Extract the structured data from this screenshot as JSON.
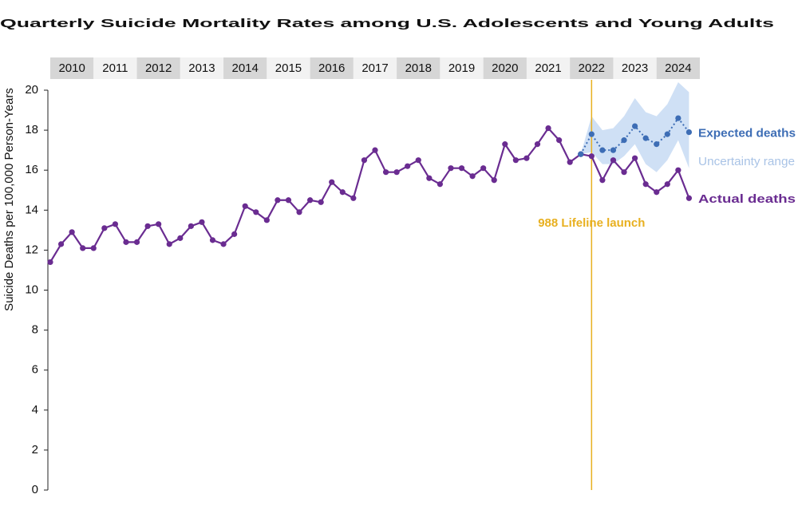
{
  "chart_data": {
    "type": "line",
    "title": "Quarterly Suicide Mortality Rates among U.S. Adolescents and Young Adults",
    "ylabel": "Suicide Deaths per 100,000 Person-Years",
    "years": [
      2010,
      2011,
      2012,
      2013,
      2014,
      2015,
      2016,
      2017,
      2018,
      2019,
      2020,
      2021,
      2022,
      2023,
      2024
    ],
    "band_colors": [
      "#d6d6d6",
      "#f2f2f2"
    ],
    "x": [
      2010,
      2010.25,
      2010.5,
      2010.75,
      2011,
      2011.25,
      2011.5,
      2011.75,
      2012,
      2012.25,
      2012.5,
      2012.75,
      2013,
      2013.25,
      2013.5,
      2013.75,
      2014,
      2014.25,
      2014.5,
      2014.75,
      2015,
      2015.25,
      2015.5,
      2015.75,
      2016,
      2016.25,
      2016.5,
      2016.75,
      2017,
      2017.25,
      2017.5,
      2017.75,
      2018,
      2018.25,
      2018.5,
      2018.75,
      2019,
      2019.25,
      2019.5,
      2019.75,
      2020,
      2020.25,
      2020.5,
      2020.75,
      2021,
      2021.25,
      2021.5,
      2021.75,
      2022,
      2022.25,
      2022.5,
      2022.75,
      2023,
      2023.25,
      2023.5,
      2023.75,
      2024,
      2024.25,
      2024.5,
      2024.75
    ],
    "xlim": [
      2010,
      2025
    ],
    "ylim": [
      0,
      20
    ],
    "yticks": [
      0,
      2,
      4,
      6,
      8,
      10,
      12,
      14,
      16,
      18,
      20
    ],
    "series": [
      {
        "name": "Actual deaths",
        "color": "#6a2c91",
        "style": "solid",
        "values": [
          11.4,
          12.3,
          12.9,
          12.1,
          12.1,
          13.1,
          13.3,
          12.4,
          12.4,
          13.2,
          13.3,
          12.3,
          12.6,
          13.2,
          13.4,
          12.5,
          12.3,
          12.8,
          14.2,
          13.9,
          13.5,
          14.5,
          14.5,
          13.9,
          14.5,
          14.4,
          15.4,
          14.9,
          14.6,
          16.5,
          17.0,
          15.9,
          15.9,
          16.2,
          16.5,
          15.6,
          15.3,
          16.1,
          16.1,
          15.7,
          16.1,
          15.5,
          17.3,
          16.5,
          16.6,
          17.3,
          18.1,
          17.5,
          16.4,
          16.8,
          16.7,
          15.5,
          16.5,
          15.9,
          16.6,
          15.3,
          14.9,
          15.3,
          16.0,
          14.6
        ]
      },
      {
        "name": "Expected deaths",
        "color": "#3d6db5",
        "style": "dotted",
        "values": [
          null,
          null,
          null,
          null,
          null,
          null,
          null,
          null,
          null,
          null,
          null,
          null,
          null,
          null,
          null,
          null,
          null,
          null,
          null,
          null,
          null,
          null,
          null,
          null,
          null,
          null,
          null,
          null,
          null,
          null,
          null,
          null,
          null,
          null,
          null,
          null,
          null,
          null,
          null,
          null,
          null,
          null,
          null,
          null,
          null,
          null,
          null,
          null,
          null,
          16.8,
          17.8,
          17.0,
          17.0,
          17.5,
          18.2,
          17.6,
          17.3,
          17.8,
          18.6,
          17.9
        ]
      }
    ],
    "band": {
      "name": "Uncertainty range",
      "color": "#cfe0f5",
      "label_color": "#a9c3e6",
      "upper": [
        null,
        null,
        null,
        null,
        null,
        null,
        null,
        null,
        null,
        null,
        null,
        null,
        null,
        null,
        null,
        null,
        null,
        null,
        null,
        null,
        null,
        null,
        null,
        null,
        null,
        null,
        null,
        null,
        null,
        null,
        null,
        null,
        null,
        null,
        null,
        null,
        null,
        null,
        null,
        null,
        null,
        null,
        null,
        null,
        null,
        null,
        null,
        null,
        null,
        16.8,
        18.7,
        18.0,
        18.1,
        18.7,
        19.6,
        18.9,
        18.7,
        19.3,
        20.4,
        19.9
      ],
      "lower": [
        null,
        null,
        null,
        null,
        null,
        null,
        null,
        null,
        null,
        null,
        null,
        null,
        null,
        null,
        null,
        null,
        null,
        null,
        null,
        null,
        null,
        null,
        null,
        null,
        null,
        null,
        null,
        null,
        null,
        null,
        null,
        null,
        null,
        null,
        null,
        null,
        null,
        null,
        null,
        null,
        null,
        null,
        null,
        null,
        null,
        null,
        null,
        null,
        null,
        16.8,
        16.9,
        16.3,
        16.3,
        16.7,
        17.3,
        16.3,
        15.9,
        16.5,
        17.5,
        16.1
      ]
    },
    "annotation": {
      "text": "988 Lifeline launch",
      "x": 2022.5,
      "color": "#e8b020"
    }
  }
}
